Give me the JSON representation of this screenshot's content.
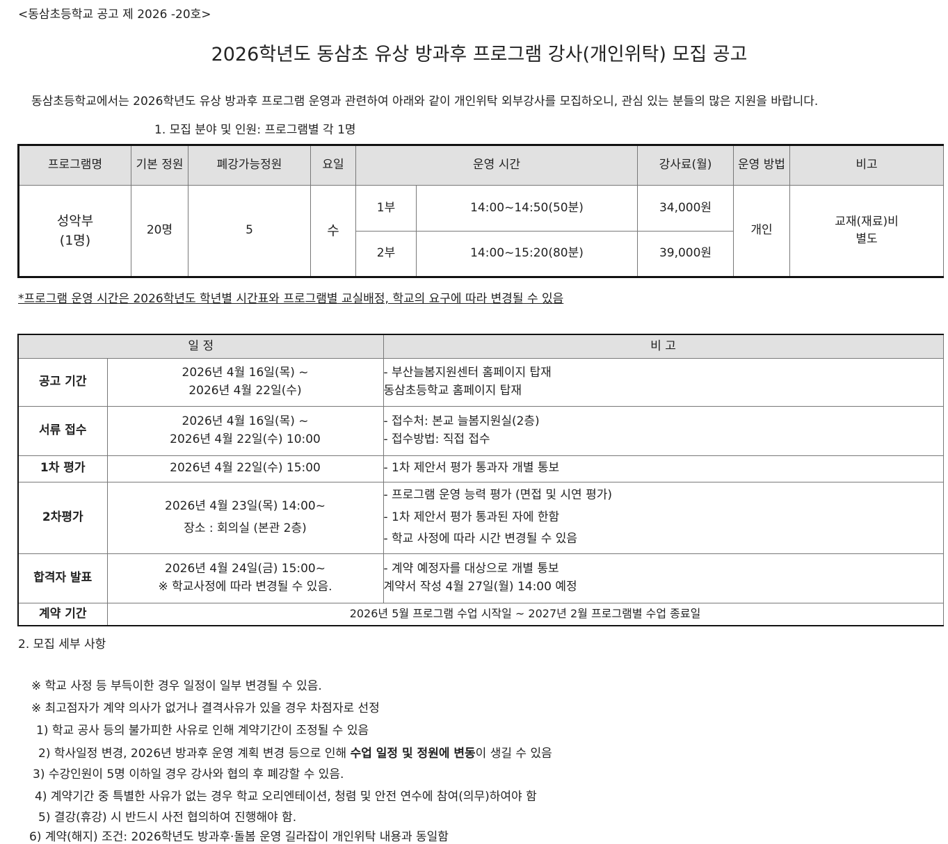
{
  "notice_number": "<동삼초등학교 공고 제 2026 -20호>",
  "title": "2026학년도 동삼초 유상 방과후 프로그램 강사(개인위탁) 모집 공고",
  "intro": "동삼초등학교에서는 2026학년도 유상 방과후 프로그램 운영과 관련하여 아래와 같이 개인위탁 외부강사를 모집하오니, 관심 있는 분들의 많은 지원을 바랍니다.",
  "section1": "1. 모집 분야 및 인원: 프로그램별 각 1명",
  "program_table": {
    "headers": [
      "프로그램명",
      "기본 정원",
      "폐강가능정원",
      "요일",
      "운영 시간",
      "강사료(월)",
      "운영 방법",
      "비고"
    ],
    "program": "성악부",
    "program_count": "(1명)",
    "base_capacity": "20명",
    "cancel_capacity": "5",
    "day": "수",
    "sessions": [
      {
        "part": "1부",
        "time": "14:00~14:50(50분)",
        "fee": "34,000원"
      },
      {
        "part": "2부",
        "time": "14:00~15:20(80분)",
        "fee": "39,000원"
      }
    ],
    "method": "개인",
    "remark_1": "교재(재료)비",
    "remark_2": "별도"
  },
  "note": "*프로그램 운영 시간은 2026학년도 학년별 시간표와 프로그램별 교실배정, 학교의 요구에 따라 변경될 수 있음",
  "schedule_table": {
    "headers": [
      "일 정",
      "비 고"
    ],
    "rows": [
      {
        "label": "공고 기간",
        "date": [
          "2026년 4월 16일(목) ~",
          "2026년 4월 22일(수)"
        ],
        "remarks": [
          "- 부산늘봄지원센터 홈페이지 탑재",
          "동삼초등학교 홈페이지 탑재"
        ]
      },
      {
        "label": "서류 접수",
        "date": [
          "2026년 4월 16일(목) ~",
          "2026년 4월 22일(수) 10:00"
        ],
        "remarks": [
          "- 접수처: 본교 늘봄지원실(2층)",
          "- 접수방법: 직접 접수"
        ]
      },
      {
        "label": "1차 평가",
        "date": [
          "2026년 4월 22일(수) 15:00"
        ],
        "remarks": [
          "- 1차 제안서 평가 통과자 개별 통보"
        ]
      },
      {
        "label": "2차평가",
        "date": [
          "2026년 4월 23일(목) 14:00~",
          "장소 : 회의실 (본관 2층)"
        ],
        "remarks": [
          "- 프로그램 운영 능력 평가 (면접 및 시연 평가)",
          "- 1차 제안서 평가 통과된 자에 한함",
          "- 학교 사정에 따라 시간 변경될 수 있음"
        ]
      },
      {
        "label": "합격자 발표",
        "date": [
          "2026년 4월 24일(금) 15:00~",
          "※ 학교사정에 따라 변경될 수 있음."
        ],
        "remarks": [
          "- 계약 예정자를 대상으로 개별 통보",
          "계약서 작성 4월 27일(월) 14:00 예정"
        ]
      },
      {
        "label": "계약 기간",
        "period": "2026년 5월 프로그램 수업 시작일 ~ 2027년 2월 프로그램별 수업 종료일"
      }
    ]
  },
  "section2": "2. 모집 세부 사항",
  "details": [
    "※ 학교 사정 등 부득이한 경우 일정이 일부 변경될 수 있음.",
    "※ 최고점자가 계약 의사가 없거나 결격사유가 있을 경우 차점자로 선정",
    "1) 학교 공사 등의 불가피한 사유로 인해 계약기간이 조정될 수 있음",
    {
      "pre": "2) 학사일정 변경, 2026년 방과후 운영 계획 변경 등으로 인해 ",
      "bold": "수업 일정 및 정원에 변동",
      "post": "이 생길 수 있음"
    },
    "3) 수강인원이 5명 이하일 경우 강사와 협의 후 폐강할 수 있음.",
    "4) 계약기간 중 특별한 사유가 없는 경우 학교 오리엔테이션, 청렴 및 안전 연수에 참여(의무)하여야 함",
    "5) 결강(휴강) 시 반드시 사전 협의하여 진행해야 함.",
    "6) 계약(해지) 조건: 2026학년도 방과후·돌봄 운영 길라잡이 개인위탁 내용과 동일함"
  ]
}
